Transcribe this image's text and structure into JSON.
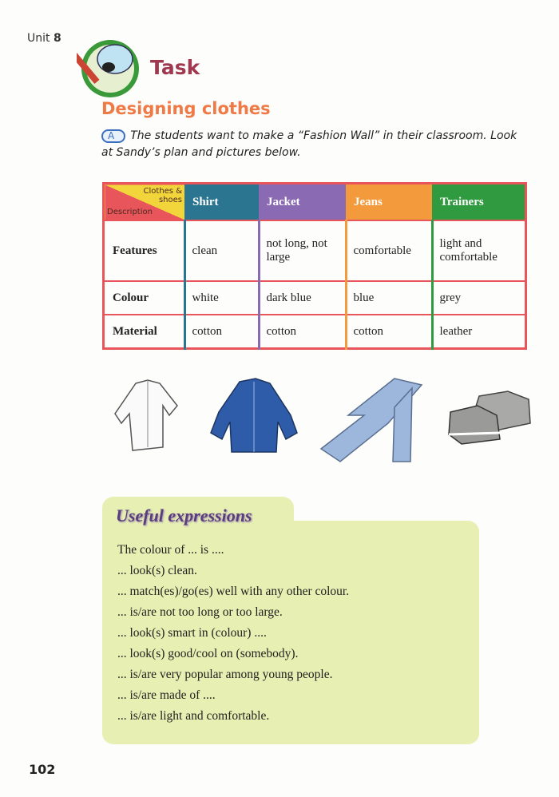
{
  "unit": {
    "label": "Unit",
    "number": "8"
  },
  "section": "Task",
  "title": "Designing clothes",
  "intro": {
    "badge": "A",
    "text": "The students want to make a “Fashion Wall” in their classroom. Look at Sandy’s plan and pictures below."
  },
  "table": {
    "corner_top": "Clothes & shoes",
    "corner_bottom": "Description",
    "columns": [
      {
        "label": "Shirt",
        "color": "#2b7590"
      },
      {
        "label": "Jacket",
        "color": "#8a6bb3"
      },
      {
        "label": "Jeans",
        "color": "#f39a3c"
      },
      {
        "label": "Trainers",
        "color": "#2f9a3f"
      }
    ],
    "rows": [
      {
        "label": "Features",
        "cells": [
          "clean",
          "not long, not large",
          "comfortable",
          "light and comfortable"
        ]
      },
      {
        "label": "Colour",
        "cells": [
          "white",
          "dark blue",
          "blue",
          "grey"
        ]
      },
      {
        "label": "Material",
        "cells": [
          "cotton",
          "cotton",
          "cotton",
          "leather"
        ]
      }
    ]
  },
  "pictures": [
    "shirt",
    "jacket",
    "jeans",
    "trainers"
  ],
  "expressions": {
    "title": "Useful expressions",
    "items": [
      "The colour of ... is ....",
      "... look(s) clean.",
      "... match(es)/go(es) well with any other colour.",
      "... is/are not too long or too large.",
      "... look(s) smart in (colour) ....",
      "... look(s) good/cool on (somebody).",
      "... is/are very popular among young people.",
      "... is/are made of ....",
      "... is/are light and comfortable."
    ]
  },
  "page_number": "102"
}
